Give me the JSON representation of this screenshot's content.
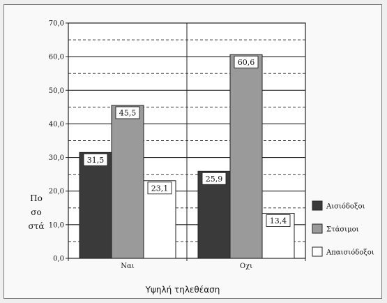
{
  "chart_data": {
    "type": "bar",
    "categories": [
      "Ναι",
      "Οχι"
    ],
    "series": [
      {
        "name": "Αισιόδοξοι",
        "values": [
          31.5,
          25.9
        ],
        "color": "#3a3a3a"
      },
      {
        "name": "Στάσιμοι",
        "values": [
          45.5,
          60.6
        ],
        "color": "#9a9a9a"
      },
      {
        "name": "Απαισιόδοξοι",
        "values": [
          23.1,
          13.4
        ],
        "color": "#ffffff"
      }
    ],
    "data_labels": [
      [
        "31,5",
        "25,9"
      ],
      [
        "45,5",
        "60,6"
      ],
      [
        "23,1",
        "13,4"
      ]
    ],
    "yticks": [
      "0,0",
      "10,0",
      "20,0",
      "30,0",
      "40,0",
      "50,0",
      "60,0",
      "70,0"
    ],
    "ylim": [
      0,
      70
    ],
    "ylabel_lines": [
      "Πο",
      "σο",
      "στά"
    ],
    "xlabel": "Υψηλή τηλεθέαση",
    "grid": true,
    "legend_position": "right"
  }
}
